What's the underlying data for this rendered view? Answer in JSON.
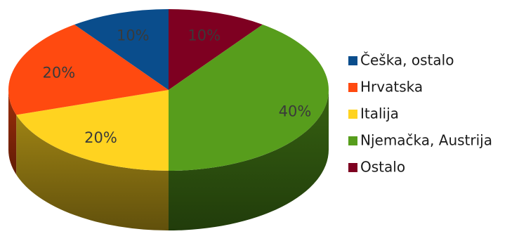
{
  "chart_data": {
    "type": "pie",
    "style": "3d",
    "categories": [
      "Češka, ostalo",
      "Hrvatska",
      "Italija",
      "Njemačka, Austrija",
      "Ostalo"
    ],
    "values": [
      10,
      20,
      20,
      40,
      10
    ],
    "labels": [
      "10%",
      "20%",
      "20%",
      "40%",
      "10%"
    ],
    "colors": [
      "#0a4d8c",
      "#ff4a10",
      "#ffd320",
      "#579d1c",
      "#7e0021"
    ],
    "legend": "right"
  }
}
